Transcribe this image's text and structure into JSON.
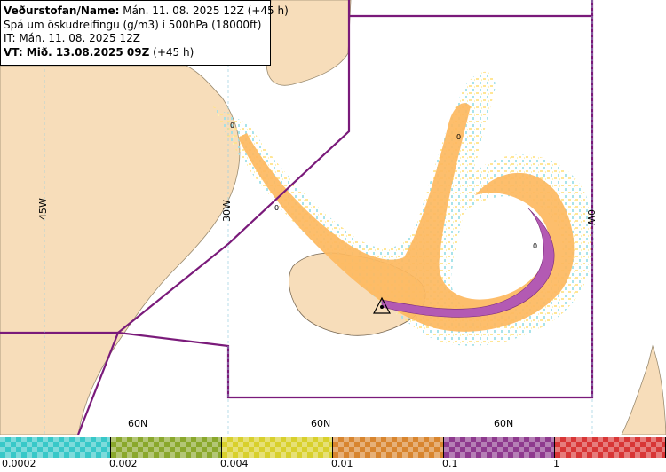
{
  "info": {
    "line1_bold": "Veðurstofan/Name:",
    "line1_rest": " Mán. 11. 08. 2025 12Z (+45 h)",
    "line2": "Spá um öskudreifingu (g/m3) í 500hPa (18000ft)",
    "line3": "IT: Mán. 11. 08. 2025 12Z",
    "line4_bold": "VT: Mið. 13.08.2025 09Z",
    "line4_rest": " (+45 h)"
  },
  "grid_labels": {
    "lon_45w": "45W",
    "lon_30w": "30W",
    "lon_0w": "0W",
    "lat_60n_a": "60N",
    "lat_60n_b": "60N",
    "lat_60n_c": "60N"
  },
  "contour_labels": {
    "a": "0",
    "b": "0",
    "c": "0",
    "d": "0"
  },
  "volcano_marker": "volcano-icon",
  "scale": {
    "labels": [
      "0.0002",
      "0.002",
      "0.004",
      "0.01",
      "0.1",
      "1"
    ],
    "colors": [
      "#38c8c8",
      "#8aa82c",
      "#d8d02c",
      "#d8852e",
      "#8e3a8e",
      "#d83636"
    ]
  },
  "colors": {
    "land": "#f7ddba",
    "sea": "#ffffff",
    "fir_boundary": "#7a1a7a",
    "ash_light": "#ffe8a0",
    "ash_mid": "#fdb860",
    "ash_high": "#b35ab3"
  }
}
